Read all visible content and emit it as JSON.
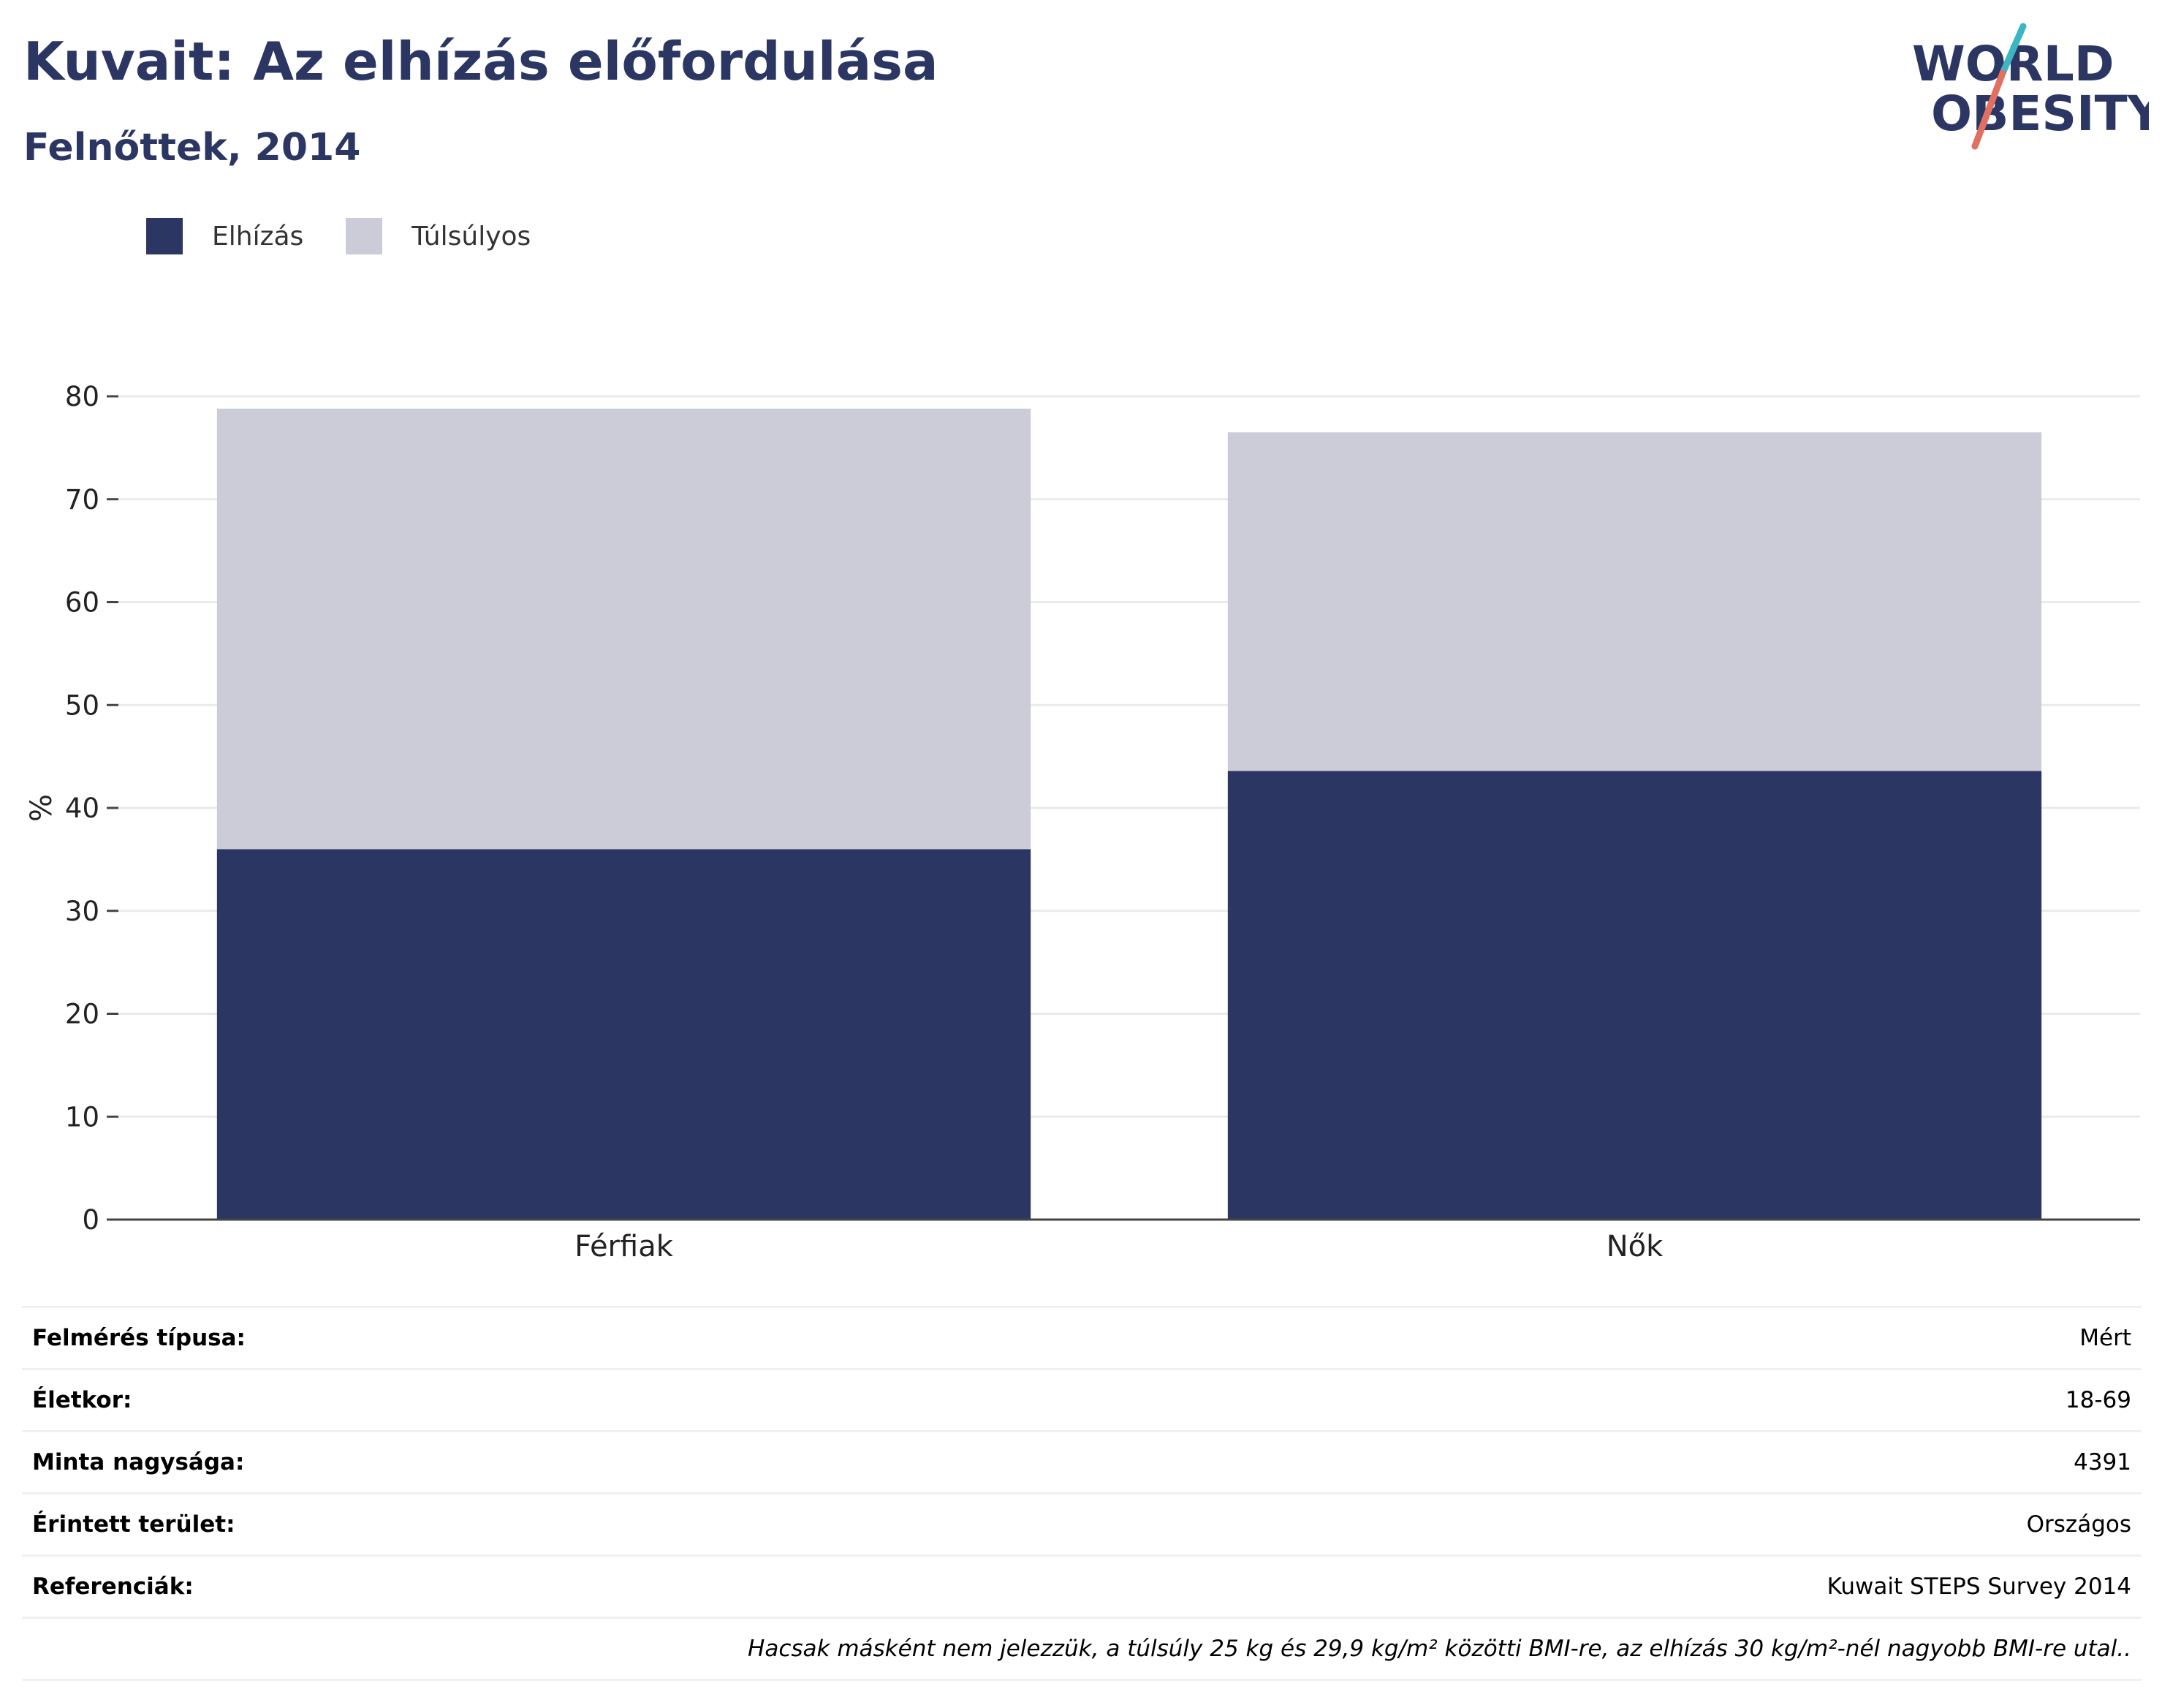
{
  "header": {
    "title": "Kuvait: Az elhízás előfordulása",
    "subtitle": "Felnőttek, 2014"
  },
  "logo": {
    "line1": "WORLD",
    "line2": "OBESITY",
    "accent_colors": [
      "#3bb6c2",
      "#e07060"
    ]
  },
  "colors": {
    "obesity": "#2b3663",
    "overweight": "#cbccd8",
    "title": "#2b3663"
  },
  "chart_data": {
    "type": "bar",
    "stacked": true,
    "categories": [
      "Férfiak",
      "Nők"
    ],
    "series": [
      {
        "name": "Elhízás",
        "values": [
          36.0,
          43.6
        ],
        "color": "#2b3663"
      },
      {
        "name": "Túlsúlyos",
        "values": [
          42.8,
          32.9
        ],
        "color": "#cbccd8"
      }
    ],
    "ylabel": "%",
    "ylim": [
      0,
      80
    ],
    "yticks": [
      0,
      10,
      20,
      30,
      40,
      50,
      60,
      70,
      80
    ],
    "grid": true,
    "legend_position": "top-left"
  },
  "info": {
    "rows": [
      {
        "label": "Felmérés típusa:",
        "value": "Mért"
      },
      {
        "label": "Életkor:",
        "value": "18-69"
      },
      {
        "label": "Minta nagysága:",
        "value": "4391"
      },
      {
        "label": "Érintett terület:",
        "value": "Országos"
      },
      {
        "label": "Referenciák:",
        "value": "Kuwait STEPS Survey 2014"
      }
    ],
    "footnote": "Hacsak másként nem jelezzük, a túlsúly 25 kg és 29,9 kg/m² közötti BMI-re, az elhízás 30 kg/m²-nél nagyobb BMI-re utal.."
  }
}
